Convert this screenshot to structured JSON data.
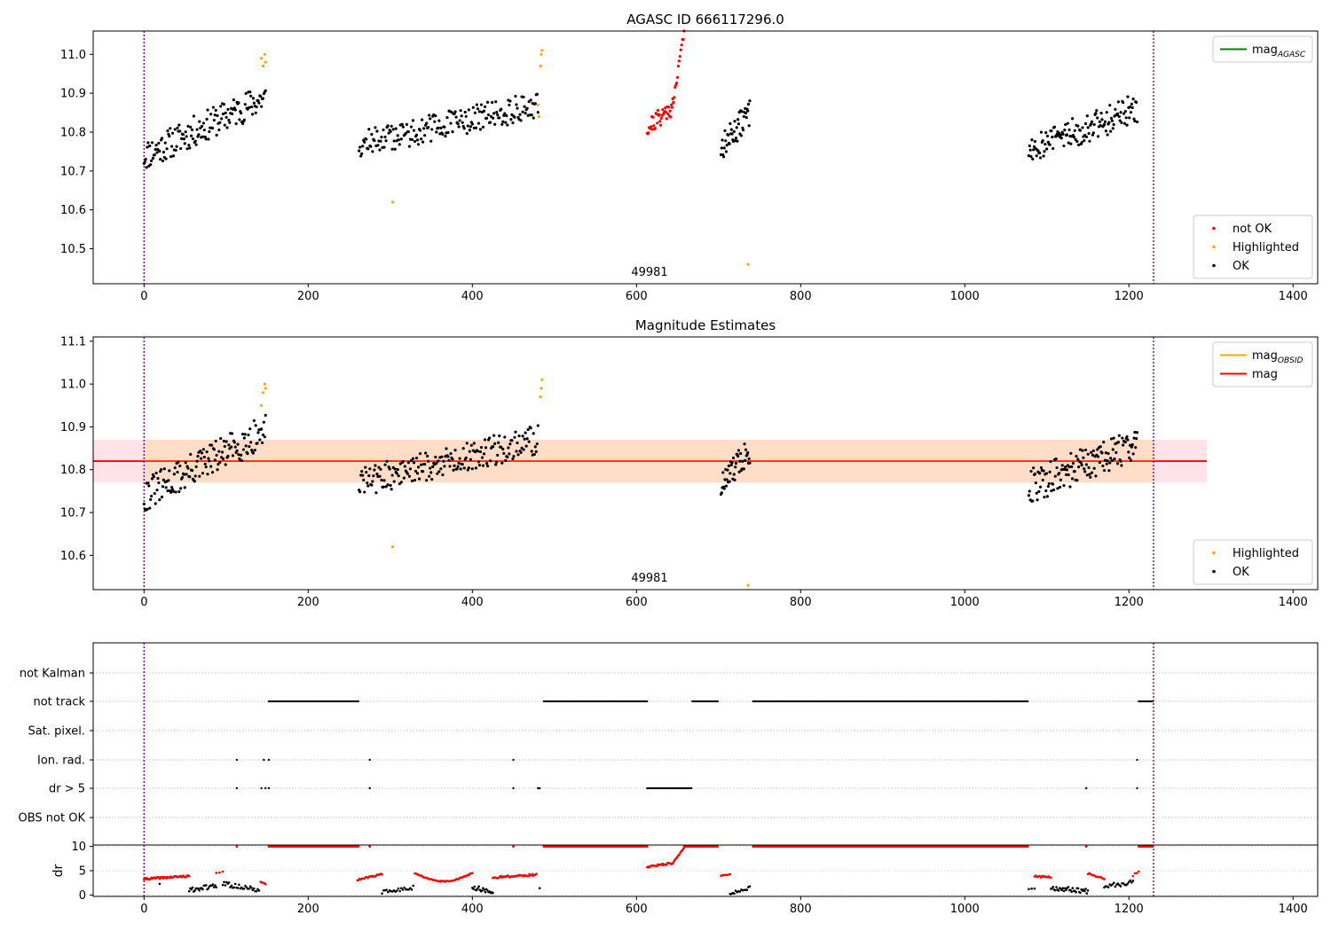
{
  "figure": {
    "title": "AGASC ID 666117296.0",
    "obsid_label": "49981"
  },
  "colors": {
    "ok": "#000000",
    "not_ok": "#ff0000",
    "highlighted": "#ffa500",
    "obs_bounds": "#800080",
    "mag_agasc": "#008000",
    "mag_obsid": "#ffa500",
    "mag_mean": "#ff0000",
    "band_fill": "#ffc0cb",
    "band_fill_obsid": "#ffdab9"
  },
  "chart_data": [
    {
      "id": "top",
      "type": "scatter",
      "title": "",
      "xlim": [
        -62,
        1430
      ],
      "ylim": [
        10.41,
        11.06
      ],
      "xticks": [
        0,
        200,
        400,
        600,
        800,
        1000,
        1200,
        1400
      ],
      "yticks": [
        10.5,
        10.6,
        10.7,
        10.8,
        10.9,
        11.0
      ],
      "obs_bounds": [
        0,
        1230
      ],
      "legend_upper": [
        {
          "name": "mag_AGASC",
          "base": "mag",
          "sub": "AGASC",
          "style": "line",
          "color_key": "mag_agasc"
        }
      ],
      "legend_lower": [
        {
          "name": "not OK",
          "style": "dot",
          "color_key": "not_ok"
        },
        {
          "name": "Highlighted",
          "style": "dot",
          "color_key": "highlighted"
        },
        {
          "name": "OK",
          "style": "dot",
          "color_key": "ok"
        }
      ],
      "series": [
        {
          "name": "OK",
          "segments": [
            {
              "x0": 0,
              "x1": 148,
              "y0": 10.74,
              "y1": 10.89,
              "n": 150,
              "spread": 0.04,
              "seed": 11
            },
            {
              "x0": 262,
              "x1": 480,
              "y0": 10.77,
              "y1": 10.87,
              "n": 200,
              "spread": 0.035,
              "seed": 12
            },
            {
              "x0": 703,
              "x1": 738,
              "y0": 10.76,
              "y1": 10.85,
              "n": 45,
              "spread": 0.035,
              "seed": 13
            },
            {
              "x0": 1078,
              "x1": 1210,
              "y0": 10.76,
              "y1": 10.86,
              "n": 140,
              "spread": 0.04,
              "seed": 14
            }
          ]
        },
        {
          "name": "not OK",
          "segments": [
            {
              "x0": 613,
              "x1": 645,
              "y0": 10.81,
              "y1": 10.87,
              "n": 40,
              "spread": 0.025,
              "seed": 21
            },
            {
              "x0": 645,
              "x1": 658,
              "y0": 10.88,
              "y1": 11.06,
              "n": 14,
              "spread": 0.01,
              "seed": 22
            }
          ]
        },
        {
          "name": "Highlighted",
          "points": [
            [
              143,
              10.99
            ],
            [
              145,
              10.97
            ],
            [
              147,
              11.0
            ],
            [
              148,
              10.98
            ],
            [
              303,
              10.62
            ],
            [
              480,
              10.87
            ],
            [
              481,
              10.84
            ],
            [
              483,
              10.97
            ],
            [
              484,
              11.0
            ],
            [
              485,
              11.01
            ],
            [
              736,
              10.46
            ]
          ]
        }
      ]
    },
    {
      "id": "middle",
      "type": "scatter",
      "title": "Magnitude Estimates",
      "xlim": [
        -62,
        1430
      ],
      "ylim": [
        10.52,
        11.11
      ],
      "xticks": [
        0,
        200,
        400,
        600,
        800,
        1000,
        1200,
        1400
      ],
      "yticks": [
        10.6,
        10.7,
        10.8,
        10.9,
        11.0,
        11.1
      ],
      "obs_bounds": [
        0,
        1230
      ],
      "mean_mag": 10.82,
      "band": [
        10.77,
        10.87
      ],
      "band_x": [
        -62,
        1295
      ],
      "obsid_band_x": [
        0,
        1230
      ],
      "legend_upper": [
        {
          "name": "mag_OBSID",
          "base": "mag",
          "sub": "OBSID",
          "style": "line",
          "color_key": "mag_obsid"
        },
        {
          "name": "mag",
          "base": "mag",
          "sub": "",
          "style": "line",
          "color_key": "mag_mean"
        }
      ],
      "legend_lower": [
        {
          "name": "Highlighted",
          "style": "dot",
          "color_key": "highlighted"
        },
        {
          "name": "OK",
          "style": "dot",
          "color_key": "ok"
        }
      ],
      "series": [
        {
          "name": "OK",
          "segments": [
            {
              "x0": 0,
              "x1": 148,
              "y0": 10.74,
              "y1": 10.89,
              "n": 150,
              "spread": 0.04,
              "seed": 31
            },
            {
              "x0": 262,
              "x1": 480,
              "y0": 10.77,
              "y1": 10.87,
              "n": 200,
              "spread": 0.035,
              "seed": 32
            },
            {
              "x0": 703,
              "x1": 738,
              "y0": 10.76,
              "y1": 10.85,
              "n": 45,
              "spread": 0.035,
              "seed": 33
            },
            {
              "x0": 1078,
              "x1": 1210,
              "y0": 10.76,
              "y1": 10.86,
              "n": 140,
              "spread": 0.04,
              "seed": 34
            }
          ]
        },
        {
          "name": "Highlighted",
          "points": [
            [
              143,
              10.95
            ],
            [
              145,
              10.98
            ],
            [
              147,
              11.0
            ],
            [
              148,
              10.99
            ],
            [
              303,
              10.62
            ],
            [
              483,
              10.97
            ],
            [
              484,
              10.99
            ],
            [
              485,
              11.01
            ],
            [
              736,
              10.53
            ]
          ]
        }
      ]
    },
    {
      "id": "flags",
      "type": "scatter",
      "xlim": [
        -62,
        1430
      ],
      "categories": [
        "not Kalman",
        "not track",
        "Sat. pixel.",
        "Ion. rad.",
        "dr > 5",
        "OBS not OK"
      ],
      "obs_bounds": [
        0,
        1230
      ],
      "flags": {
        "not Kalman": {
          "ranges": [],
          "points": []
        },
        "not track": {
          "ranges": [
            [
              152,
              262
            ],
            [
              487,
              614
            ],
            [
              668,
              700
            ],
            [
              742,
              1078
            ],
            [
              1212,
              1230
            ]
          ],
          "points": []
        },
        "Sat. pixel.": {
          "ranges": [],
          "points": []
        },
        "Ion. rad.": {
          "ranges": [],
          "points": [
            113,
            146,
            152,
            275,
            450,
            1210
          ]
        },
        "dr > 5": {
          "ranges": [
            [
              613,
              668
            ]
          ],
          "points": [
            113,
            143,
            148,
            152,
            275,
            450,
            480,
            482,
            1148,
            1210
          ]
        },
        "OBS not OK": {
          "ranges": [],
          "points": []
        }
      }
    },
    {
      "id": "dr",
      "type": "scatter",
      "xlim": [
        -62,
        1430
      ],
      "ylim": [
        -0.3,
        10.3
      ],
      "ylabel": "dr",
      "yticks": [
        0,
        5,
        10
      ],
      "obs_bounds": [
        0,
        1230
      ],
      "dr_clip": 10,
      "series": [
        {
          "name": "not OK",
          "segments": [
            {
              "x0": 0,
              "x1": 55,
              "y0": 3.3,
              "y1": 3.9,
              "n": 55,
              "spread": 0.2,
              "seed": 41
            },
            {
              "x0": 88,
              "x1": 96,
              "y0": 4.6,
              "y1": 4.8,
              "n": 3,
              "spread": 0.1,
              "seed": 42
            },
            {
              "x0": 142,
              "x1": 148,
              "y0": 2.8,
              "y1": 2.4,
              "n": 5,
              "spread": 0.2,
              "seed": 43
            },
            {
              "x0": 260,
              "x1": 290,
              "y0": 3.1,
              "y1": 4.3,
              "n": 22,
              "spread": 0.15,
              "seed": 44
            },
            {
              "x0": 330,
              "x1": 400,
              "y0": 4.5,
              "y1": 4.5,
              "n": 60,
              "spread": 0.1,
              "seed": 45,
              "dip": 1.7
            },
            {
              "x0": 425,
              "x1": 478,
              "y0": 3.6,
              "y1": 4.2,
              "n": 45,
              "spread": 0.2,
              "seed": 46
            },
            {
              "x0": 613,
              "x1": 645,
              "y0": 5.8,
              "y1": 6.6,
              "n": 28,
              "spread": 0.2,
              "seed": 47
            },
            {
              "x0": 645,
              "x1": 658,
              "y0": 6.8,
              "y1": 9.7,
              "n": 12,
              "spread": 0.1,
              "seed": 48
            },
            {
              "x0": 703,
              "x1": 714,
              "y0": 4.0,
              "y1": 4.3,
              "n": 7,
              "spread": 0.1,
              "seed": 49
            },
            {
              "x0": 1085,
              "x1": 1105,
              "y0": 3.9,
              "y1": 3.6,
              "n": 14,
              "spread": 0.2,
              "seed": 50
            },
            {
              "x0": 1150,
              "x1": 1170,
              "y0": 4.4,
              "y1": 3.3,
              "n": 14,
              "spread": 0.2,
              "seed": 51
            },
            {
              "x0": 1205,
              "x1": 1212,
              "y0": 4.0,
              "y1": 4.8,
              "n": 4,
              "spread": 0.2,
              "seed": 52
            }
          ]
        },
        {
          "name": "not OK (clipped)",
          "ranges": [
            [
              152,
              262
            ],
            [
              487,
              614
            ],
            [
              658,
              700
            ],
            [
              742,
              1078
            ],
            [
              1212,
              1230
            ]
          ],
          "points": [
            113,
            275,
            450,
            1148
          ]
        },
        {
          "name": "OK",
          "segments": [
            {
              "x0": 55,
              "x1": 88,
              "y0": 1.0,
              "y1": 1.9,
              "n": 25,
              "spread": 0.5,
              "seed": 61
            },
            {
              "x0": 96,
              "x1": 140,
              "y0": 2.3,
              "y1": 1.0,
              "n": 30,
              "spread": 0.5,
              "seed": 62
            },
            {
              "x0": 290,
              "x1": 328,
              "y0": 0.5,
              "y1": 1.5,
              "n": 22,
              "spread": 0.4,
              "seed": 63
            },
            {
              "x0": 400,
              "x1": 425,
              "y0": 1.7,
              "y1": 0.5,
              "n": 20,
              "spread": 0.5,
              "seed": 64
            },
            {
              "x0": 714,
              "x1": 738,
              "y0": 0.4,
              "y1": 1.5,
              "n": 15,
              "spread": 0.4,
              "seed": 65
            },
            {
              "x0": 1078,
              "x1": 1085,
              "y0": 1.3,
              "y1": 1.5,
              "n": 3,
              "spread": 0.2,
              "seed": 66
            },
            {
              "x0": 1105,
              "x1": 1150,
              "y0": 1.5,
              "y1": 0.8,
              "n": 35,
              "spread": 0.5,
              "seed": 67
            },
            {
              "x0": 1170,
              "x1": 1205,
              "y0": 1.8,
              "y1": 2.6,
              "n": 22,
              "spread": 0.5,
              "seed": 68
            }
          ],
          "points": [
            [
              19,
              2.3
            ],
            [
              482,
              1.4
            ]
          ]
        }
      ]
    }
  ]
}
